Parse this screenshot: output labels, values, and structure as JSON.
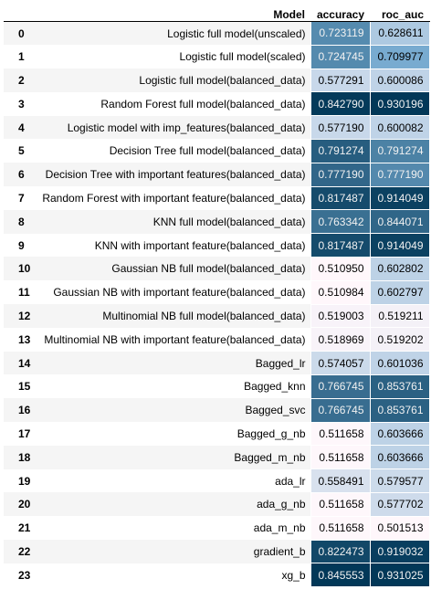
{
  "columns": {
    "index": "",
    "model": "Model",
    "accuracy": "accuracy",
    "roc_auc": "roc_auc"
  },
  "colormap": {
    "low": "#fff7fb",
    "mid": "#74a9cf",
    "high": "#023858"
  },
  "rows": [
    {
      "index": "0",
      "model": "Logistic full model(unscaled)",
      "accuracy": "0.723119",
      "roc_auc": "0.628611"
    },
    {
      "index": "1",
      "model": "Logistic full model(scaled)",
      "accuracy": "0.724745",
      "roc_auc": "0.709977"
    },
    {
      "index": "2",
      "model": "Logistic full model(balanced_data)",
      "accuracy": "0.577291",
      "roc_auc": "0.600086"
    },
    {
      "index": "3",
      "model": "Random Forest full model(balanced_data)",
      "accuracy": "0.842790",
      "roc_auc": "0.930196"
    },
    {
      "index": "4",
      "model": "Logistic model with imp_features(balanced_data)",
      "accuracy": "0.577190",
      "roc_auc": "0.600082"
    },
    {
      "index": "5",
      "model": "Decision Tree full model(balanced_data)",
      "accuracy": "0.791274",
      "roc_auc": "0.791274"
    },
    {
      "index": "6",
      "model": "Decision Tree with important features(balanced_data)",
      "accuracy": "0.777190",
      "roc_auc": "0.777190"
    },
    {
      "index": "7",
      "model": "Random Forest with important feature(balanced_data)",
      "accuracy": "0.817487",
      "roc_auc": "0.914049"
    },
    {
      "index": "8",
      "model": "KNN full model(balanced_data)",
      "accuracy": "0.763342",
      "roc_auc": "0.844071"
    },
    {
      "index": "9",
      "model": "KNN with important feature(balanced_data)",
      "accuracy": "0.817487",
      "roc_auc": "0.914049"
    },
    {
      "index": "10",
      "model": "Gaussian NB full model(balanced_data)",
      "accuracy": "0.510950",
      "roc_auc": "0.602802"
    },
    {
      "index": "11",
      "model": "Gaussian NB with important feature(balanced_data)",
      "accuracy": "0.510984",
      "roc_auc": "0.602797"
    },
    {
      "index": "12",
      "model": "Multinomial NB full model(balanced_data)",
      "accuracy": "0.519003",
      "roc_auc": "0.519211"
    },
    {
      "index": "13",
      "model": "Multinomial NB with important feature(balanced_data)",
      "accuracy": "0.518969",
      "roc_auc": "0.519202"
    },
    {
      "index": "14",
      "model": "Bagged_lr",
      "accuracy": "0.574057",
      "roc_auc": "0.601036"
    },
    {
      "index": "15",
      "model": "Bagged_knn",
      "accuracy": "0.766745",
      "roc_auc": "0.853761"
    },
    {
      "index": "16",
      "model": "Bagged_svc",
      "accuracy": "0.766745",
      "roc_auc": "0.853761"
    },
    {
      "index": "17",
      "model": "Bagged_g_nb",
      "accuracy": "0.511658",
      "roc_auc": "0.603666"
    },
    {
      "index": "18",
      "model": "Bagged_m_nb",
      "accuracy": "0.511658",
      "roc_auc": "0.603666"
    },
    {
      "index": "19",
      "model": "ada_lr",
      "accuracy": "0.558491",
      "roc_auc": "0.579577"
    },
    {
      "index": "20",
      "model": "ada_g_nb",
      "accuracy": "0.511658",
      "roc_auc": "0.577702"
    },
    {
      "index": "21",
      "model": "ada_m_nb",
      "accuracy": "0.511658",
      "roc_auc": "0.501513"
    },
    {
      "index": "22",
      "model": "gradient_b",
      "accuracy": "0.822473",
      "roc_auc": "0.919032"
    },
    {
      "index": "23",
      "model": "xg_b",
      "accuracy": "0.845553",
      "roc_auc": "0.931025"
    }
  ]
}
